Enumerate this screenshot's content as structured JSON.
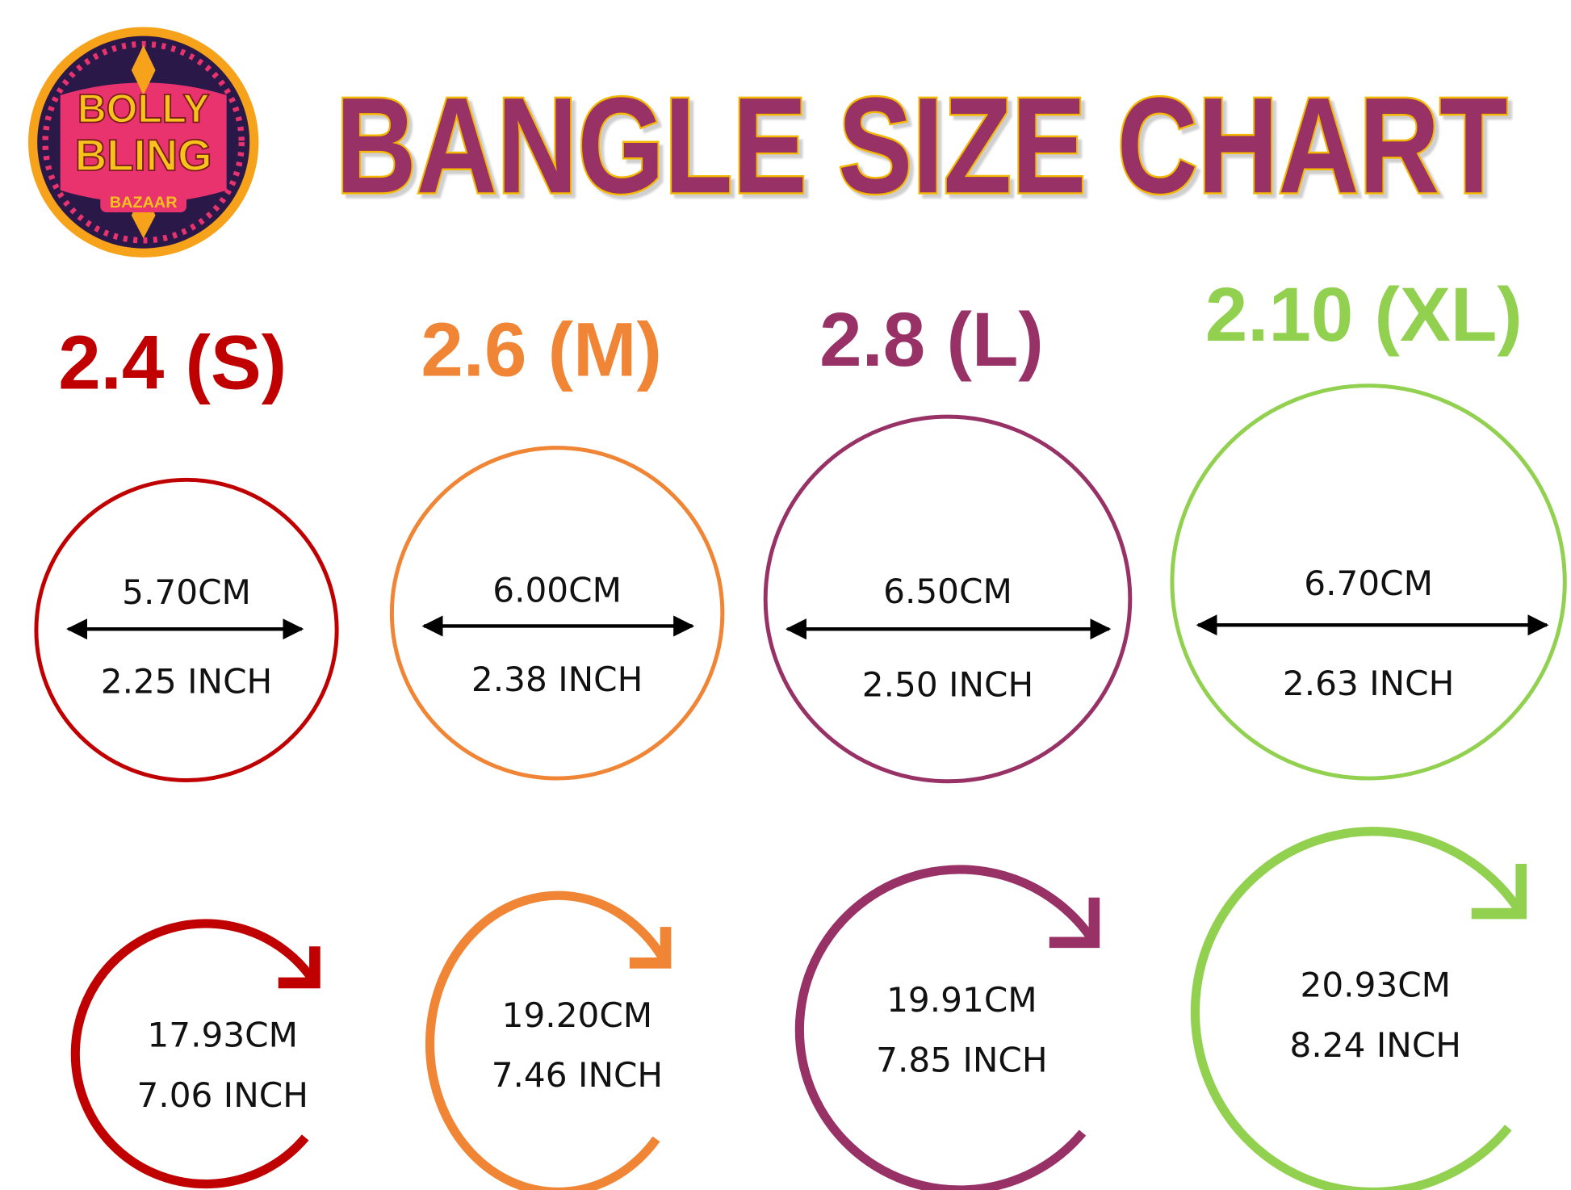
{
  "logo": {
    "line1": "BOLLY",
    "line2": "BLING",
    "line3": "BAZAAR"
  },
  "title": "BANGLE SIZE CHART",
  "colors": {
    "title_fill": "#983266",
    "title_outline": "#f5b800",
    "text": "#111111"
  },
  "sizes": [
    {
      "label": "2.4 (S)",
      "color": "#c00000",
      "diameter_cm": "5.70CM",
      "diameter_inch": "2.25 INCH",
      "circumference_cm": "17.93CM",
      "circumference_inch": "7.06 INCH"
    },
    {
      "label": "2.6 (M)",
      "color": "#ef8535",
      "diameter_cm": "6.00CM",
      "diameter_inch": "2.38 INCH",
      "circumference_cm": "19.20CM",
      "circumference_inch": "7.46 INCH"
    },
    {
      "label": "2.8 (L)",
      "color": "#983266",
      "diameter_cm": "6.50CM",
      "diameter_inch": "2.50 INCH",
      "circumference_cm": "19.91CM",
      "circumference_inch": "7.85 INCH"
    },
    {
      "label": "2.10 (XL)",
      "color": "#92d050",
      "diameter_cm": "6.70CM",
      "diameter_inch": "2.63 INCH",
      "circumference_cm": "20.93CM",
      "circumference_inch": "8.24 INCH"
    }
  ]
}
